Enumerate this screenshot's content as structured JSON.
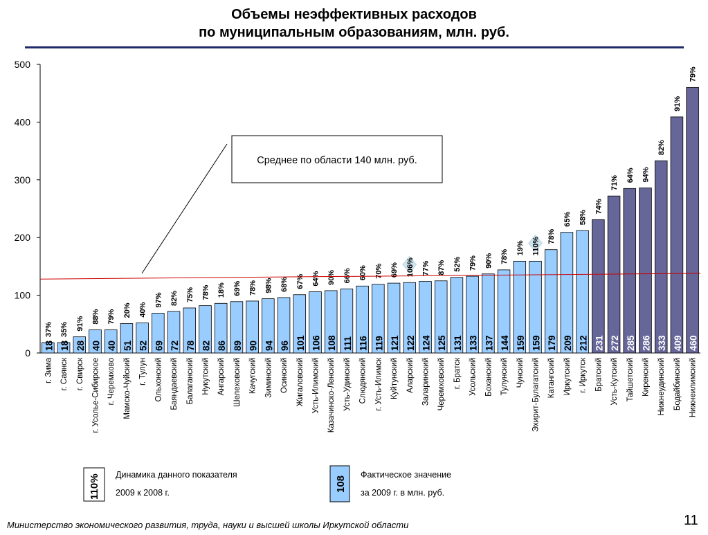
{
  "title": {
    "line1": "Объемы неэффективных расходов",
    "line2": "по муниципальным образованиям, млн. руб."
  },
  "footer": "Министерство экономического развития, труда, науки и высшей школы Иркутской области",
  "page_number": "11",
  "colors": {
    "light_bar": "#99ccff",
    "dark_bar": "#666699",
    "average_line": "#cc0000",
    "rule": "#1f2a6b",
    "diamond": "#cde4ee"
  },
  "chart_data": {
    "type": "bar",
    "ylim": [
      0,
      500
    ],
    "yticks": [
      "0",
      "100",
      "200",
      "300",
      "400",
      "500"
    ],
    "grid": false,
    "categories": [
      "г. Зима",
      "г. Саянск",
      "г. Свирск",
      "г. Усолье-Сибирское",
      "г. Черемхово",
      "Мамско-Чуйский",
      "г. Тулун",
      "Ольхонский",
      "Баяндаевский",
      "Балаганский",
      "Нукутский",
      "Ангарский",
      "Шелеховский",
      "Качугский",
      "Зиминский",
      "Осинский",
      "Жигаловский",
      "Усть-Илимский",
      "Казачинско-Ленский",
      "Усть-Удинский",
      "Слюдянский",
      "г. Усть-Илимск",
      "Куйтунский",
      "Аларский",
      "Заларинский",
      "Черемховский",
      "г. Братск",
      "Усольский",
      "Боханский",
      "Тулунский",
      "Чунский",
      "Эхирит-Булагатский",
      "Катангский",
      "Иркутский",
      "г. Иркутск",
      "Братский",
      "Усть-Кутский",
      "Тайшетский",
      "Киренский",
      "Нижнеудинский",
      "Бодайбинский",
      "Нижнеилимский"
    ],
    "values": [
      18,
      18,
      28,
      40,
      40,
      51,
      52,
      69,
      72,
      78,
      82,
      86,
      89,
      90,
      94,
      96,
      101,
      106,
      108,
      111,
      116,
      119,
      121,
      122,
      124,
      125,
      131,
      133,
      137,
      144,
      159,
      159,
      179,
      209,
      212,
      231,
      272,
      285,
      286,
      333,
      409,
      460
    ],
    "highlighted_from_index": 35,
    "dynamics_labels": [
      "37%",
      "35%",
      "91%",
      "88%",
      "79%",
      "20%",
      "40%",
      "97%",
      "82%",
      "75%",
      "78%",
      "18%",
      "69%",
      "78%",
      "98%",
      "68%",
      "67%",
      "64%",
      "90%",
      "66%",
      "60%",
      "70%",
      "69%",
      "106%",
      "77%",
      "87%",
      "52%",
      "79%",
      "90%",
      "78%",
      "19%",
      "110%",
      "78%",
      "65%",
      "58%",
      "74%",
      "71%",
      "64%",
      "94%",
      "82%",
      "91%",
      "79%"
    ],
    "dynamics_label_bars": [
      0,
      1,
      2,
      3,
      4,
      5,
      6,
      7,
      8,
      9,
      10,
      11,
      12,
      13,
      14,
      15,
      16,
      17,
      18,
      19,
      20,
      21,
      22,
      23,
      24,
      25,
      26,
      27,
      28,
      29,
      30,
      31,
      32,
      33,
      34,
      35,
      36,
      37,
      38,
      39,
      40,
      41
    ],
    "diamond_markers": [
      23,
      31
    ],
    "average_value": 140,
    "average_label": "Среднее по области 140 млн. руб.",
    "legend": {
      "dynamics_sample": "110%",
      "dynamics_line1": "Динамика данного показателя",
      "dynamics_line2": "2009 к 2008 г.",
      "actual_sample": "108",
      "actual_line1": "Фактическое значение",
      "actual_line2": "за 2009 г. в млн. руб."
    }
  }
}
